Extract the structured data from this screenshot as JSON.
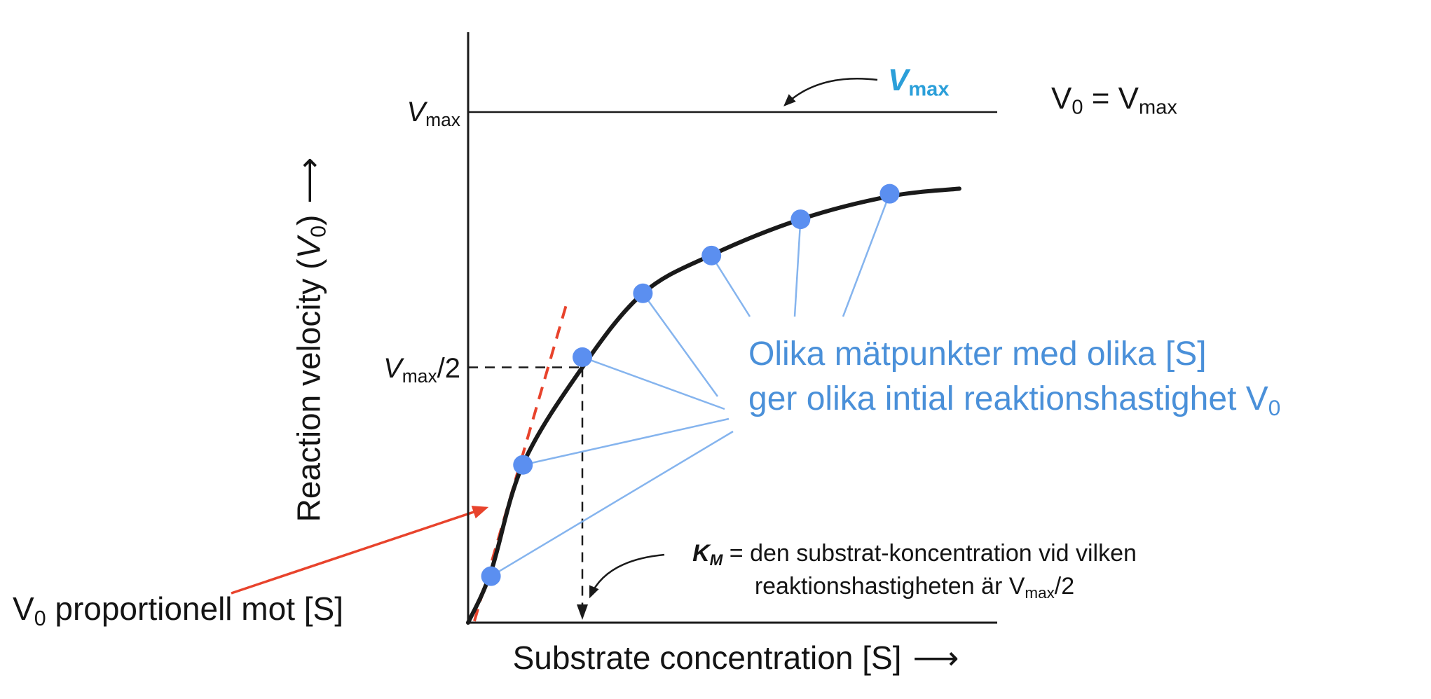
{
  "colors": {
    "axis": "#1a1a1a",
    "curve": "#1a1a1a",
    "point_blue": "#5b8ff0",
    "leader_blue": "#85b4ee",
    "annotation_blue": "#4a90d9",
    "callout_blue": "#2b9fd9",
    "red": "#e8432c",
    "background": "#ffffff"
  },
  "labels": {
    "y_axis": {
      "pre": "Reaction velocity (",
      "v": "V",
      "sub": "0",
      "post": ")",
      "arrow": "⟶"
    },
    "x_axis": {
      "text": "Substrate concentration [S]",
      "arrow": "⟶"
    },
    "vmax_tick": {
      "v": "V",
      "sub": "max"
    },
    "half_vmax_tick": {
      "v": "V",
      "sub": "max",
      "suffix": "/2"
    },
    "vmax_callout": {
      "v": "V",
      "sub": "max"
    },
    "v0_equals_vmax": {
      "v1": "V",
      "sub1": "0",
      "mid": " = V",
      "sub2": "max"
    },
    "blue_note": {
      "line1": "Olika mätpunkter med olika [S]",
      "line2_pre": "ger olika intial reaktionshastighet V",
      "line2_sub": "0"
    },
    "km_note": {
      "k": "K",
      "k_sub": "M",
      "line1_rest": " = den substrat-koncentration vid vilken",
      "line2_pre": "reaktionshastigheten är V",
      "line2_sub": "max",
      "line2_suffix": "/2"
    },
    "v0_proportional": {
      "v": "V",
      "sub": "0",
      "rest": " proportionell mot [S]"
    }
  },
  "chart_data": {
    "type": "line",
    "xlabel": "Substrate concentration [S]",
    "ylabel": "Reaction velocity (V0)",
    "x_axis_unit": "S in multiples of Km (unlabeled axis)",
    "y_axis_unit": "V0 as fraction of Vmax (unlabeled axis)",
    "xlim": [
      0,
      4.63
    ],
    "ylim": [
      0,
      1.16
    ],
    "grid": false,
    "yticks": [
      "Vmax",
      "Vmax/2"
    ],
    "asymptote": {
      "V0": 1.0,
      "label": "Vmax"
    },
    "half_max_marker": {
      "S": 1.0,
      "V0": 0.5,
      "style": "dashed-black",
      "note": "Km marker with arrowhead to x-axis"
    },
    "curve_samples": {
      "S": [
        0,
        0.2,
        0.48,
        1.0,
        1.53,
        2.13,
        2.91,
        3.69,
        4.3
      ],
      "V0": [
        0,
        0.1,
        0.31,
        0.5,
        0.645,
        0.72,
        0.79,
        0.835,
        0.85
      ]
    },
    "measurement_points": {
      "S": [
        0.2,
        0.48,
        1.0,
        1.53,
        2.13,
        2.91,
        3.69
      ],
      "V0": [
        0.091,
        0.309,
        0.52,
        0.645,
        0.719,
        0.79,
        0.84
      ]
    },
    "initial_slope_line": {
      "S": [
        0.055,
        0.865
      ],
      "V0": [
        0.003,
        0.627
      ],
      "style": "dashed-red"
    }
  }
}
